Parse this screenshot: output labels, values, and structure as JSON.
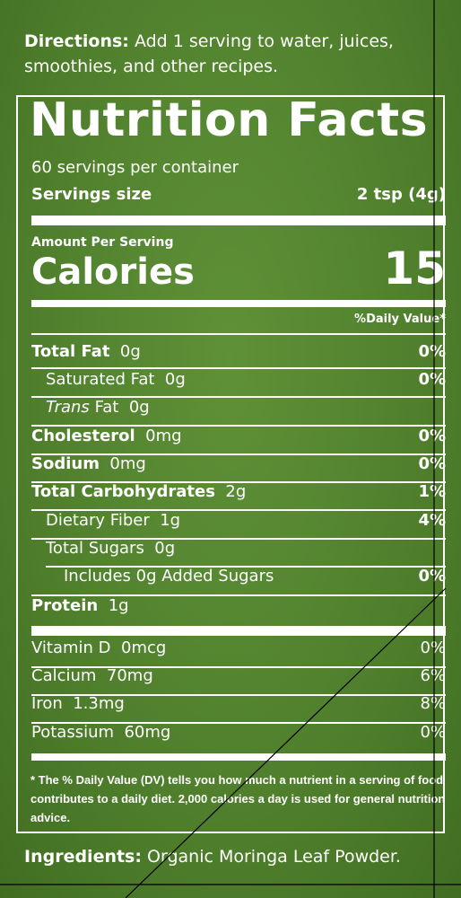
{
  "directions": {
    "label": "Directions:",
    "text": "Add 1 serving to water, juices, smoothies, and other recipes."
  },
  "title": "Nutrition Facts",
  "servings_per_container": "60 servings per container",
  "serving_size": {
    "label": "Servings size",
    "value": "2 tsp (4g)"
  },
  "amount_per_serving": "Amount Per Serving",
  "calories": {
    "label": "Calories",
    "value": "15"
  },
  "daily_value_header": "%Daily Value*",
  "nutrients": [
    {
      "name": "Total Fat",
      "amount": "0g",
      "dv": "0%"
    },
    {
      "name": "Saturated Fat",
      "amount": "0g",
      "dv": "0%"
    },
    {
      "name_italic": "Trans",
      "name": "Fat",
      "amount": "0g"
    },
    {
      "name": "Cholesterol",
      "amount": "0mg",
      "dv": "0%"
    },
    {
      "name": "Sodium",
      "amount": "0mg",
      "dv": "0%"
    },
    {
      "name": "Total Carbohydrates",
      "amount": "2g",
      "dv": "1%"
    },
    {
      "name": "Dietary Fiber",
      "amount": "1g",
      "dv": "4%"
    },
    {
      "name": "Total Sugars",
      "amount": "0g"
    },
    {
      "name": "Includes 0g Added Sugars",
      "dv": "0%"
    },
    {
      "name": "Protein",
      "amount": "1g"
    }
  ],
  "vitamins": [
    {
      "name": "Vitamin D",
      "amount": "0mcg",
      "dv": "0%"
    },
    {
      "name": "Calcium",
      "amount": "70mg",
      "dv": "6%"
    },
    {
      "name": "Iron",
      "amount": "1.3mg",
      "dv": "8%"
    },
    {
      "name": "Potassium",
      "amount": "60mg",
      "dv": "0%"
    }
  ],
  "footnote": "* The % Daily Value (DV) tells you how much a nutrient in a serving of food contributes to a daily diet. 2,000 calories a day is used for general nutrition advice.",
  "ingredients": {
    "label": "Ingredients:",
    "text": "Organic Moringa Leaf Powder."
  }
}
